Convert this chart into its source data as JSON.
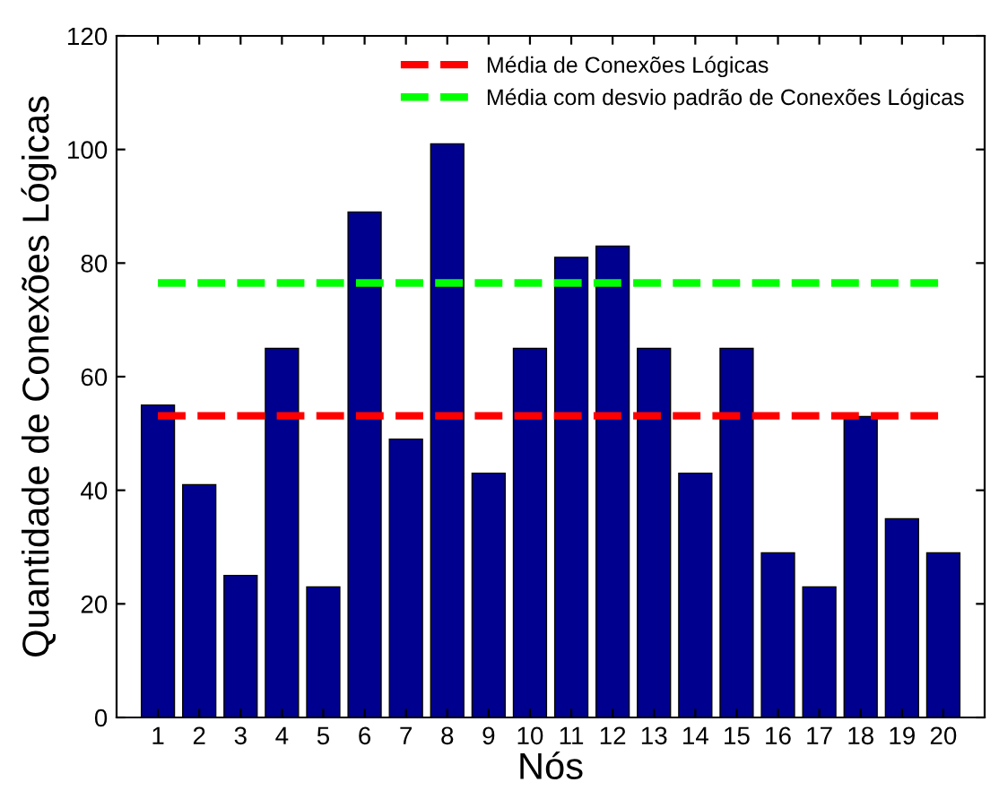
{
  "chart_data": {
    "type": "bar",
    "xlabel": "Nós",
    "ylabel": "Quantidade de Conexões Lógicas",
    "categories": [
      "1",
      "2",
      "3",
      "4",
      "5",
      "6",
      "7",
      "8",
      "9",
      "10",
      "11",
      "12",
      "13",
      "14",
      "15",
      "16",
      "17",
      "18",
      "19",
      "20"
    ],
    "values": [
      55,
      41,
      25,
      65,
      23,
      89,
      49,
      101,
      43,
      65,
      81,
      83,
      65,
      43,
      65,
      29,
      23,
      53,
      35,
      29
    ],
    "color": "#00008f",
    "ylim": [
      0,
      120
    ],
    "yticks": [
      0,
      20,
      40,
      60,
      80,
      100,
      120
    ],
    "ref_lines": [
      {
        "axis": "y",
        "value": 53.1,
        "label": "Média de Conexões Lógicas",
        "color": "#ff0000",
        "line_style": "dashed"
      },
      {
        "axis": "y",
        "value": 76.5,
        "label": "Média com desvio padrão de Conexões Lógicas",
        "color": "#00ff00",
        "line_style": "dashed"
      }
    ],
    "legend": "top right",
    "grid": false
  }
}
